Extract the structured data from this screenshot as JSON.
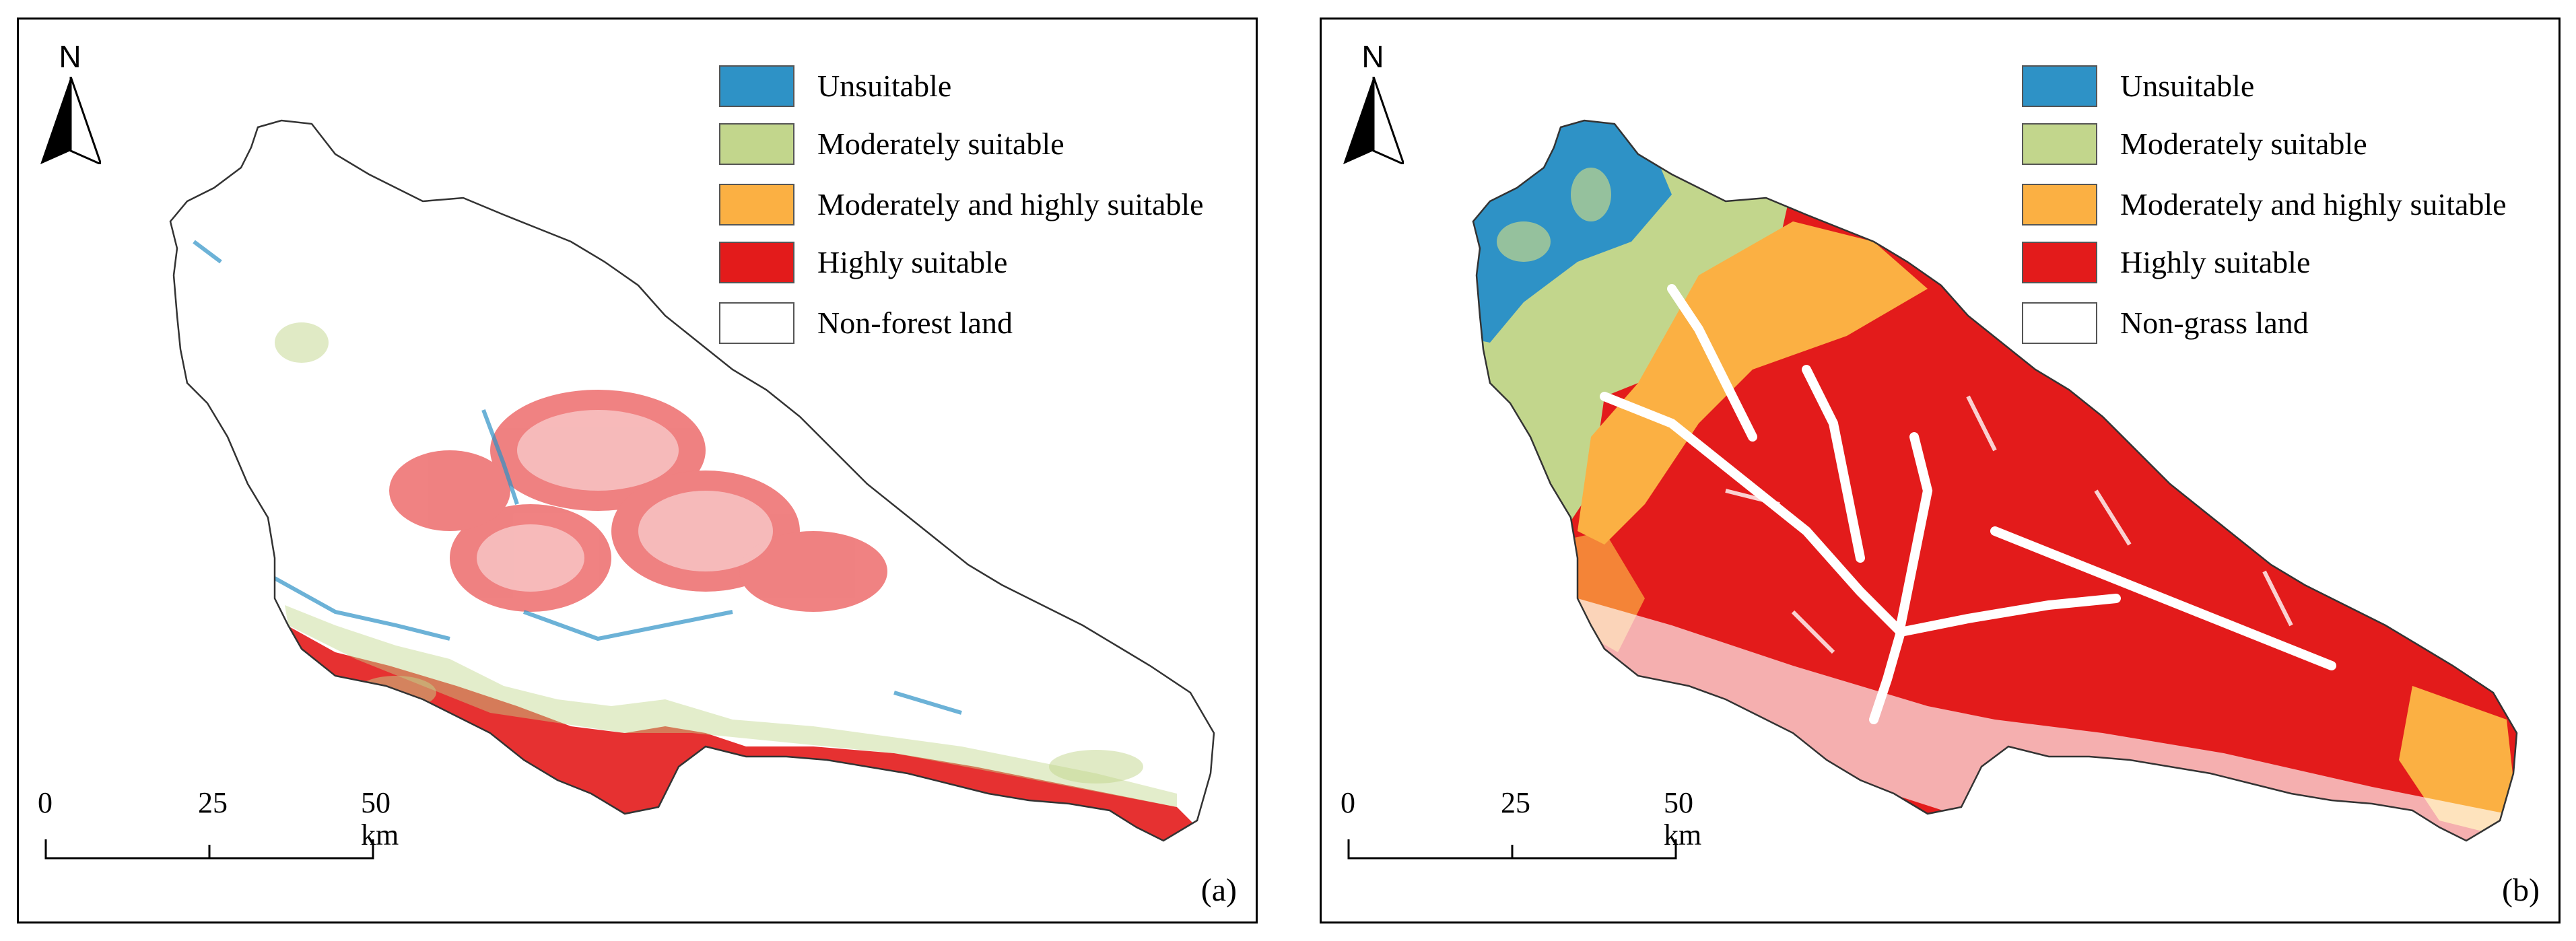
{
  "colors": {
    "unsuitable": "#2e92c6",
    "moderately_suitable": "#c2d68c",
    "moderately_highly": "#fbb043",
    "highly": "#e31b1b",
    "non_land": "#ffffff"
  },
  "north_label": "N",
  "scale": {
    "ticks": [
      "0",
      "25",
      "50 km"
    ]
  },
  "panels": [
    {
      "label": "(a)",
      "legend": [
        {
          "label": "Unsuitable",
          "color": "#2e92c6"
        },
        {
          "label": "Moderately suitable",
          "color": "#c2d68c"
        },
        {
          "label": "Moderately and highly suitable",
          "color": "#fbb043"
        },
        {
          "label": "Highly suitable",
          "color": "#e31b1b"
        },
        {
          "label": "Non-forest land",
          "color": "#ffffff"
        }
      ]
    },
    {
      "label": "(b)",
      "legend": [
        {
          "label": "Unsuitable",
          "color": "#2e92c6"
        },
        {
          "label": "Moderately suitable",
          "color": "#c2d68c"
        },
        {
          "label": "Moderately and highly suitable",
          "color": "#fbb043"
        },
        {
          "label": "Highly suitable",
          "color": "#e31b1b"
        },
        {
          "label": "Non-grass land",
          "color": "#ffffff"
        }
      ]
    }
  ]
}
